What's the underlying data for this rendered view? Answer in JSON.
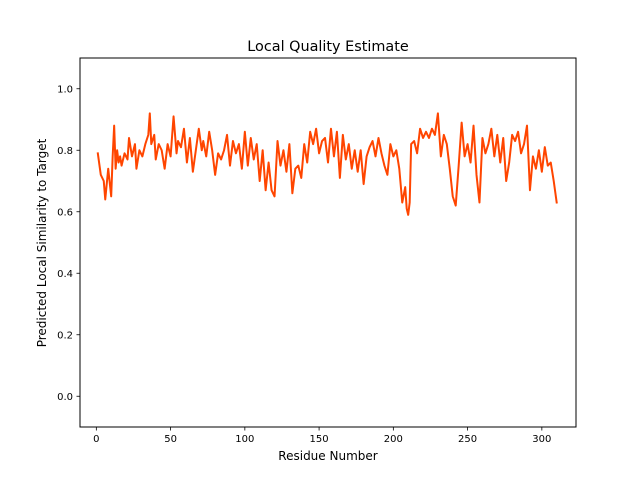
{
  "chart_data": {
    "type": "line",
    "title": "Local Quality Estimate",
    "xlabel": "Residue Number",
    "ylabel": "Predicted Local Similarity to Target",
    "xlim": [
      -11,
      323
    ],
    "ylim": [
      -0.1,
      1.1
    ],
    "xticks": [
      0,
      50,
      100,
      150,
      200,
      250,
      300
    ],
    "yticks": [
      0.0,
      0.2,
      0.4,
      0.6,
      0.8,
      1.0
    ],
    "ytick_labels": [
      "0.0",
      "0.2",
      "0.4",
      "0.6",
      "0.8",
      "1.0"
    ],
    "grid": false,
    "series": [
      {
        "color": "#ff4500",
        "x": [
          1,
          3,
          5,
          6,
          8,
          10,
          11,
          12,
          13,
          14,
          15,
          16,
          17,
          19,
          21,
          22,
          24,
          26,
          27,
          29,
          31,
          33,
          35,
          36,
          37,
          39,
          40,
          42,
          44,
          46,
          48,
          50,
          52,
          54,
          55,
          57,
          59,
          61,
          63,
          65,
          67,
          69,
          71,
          72,
          74,
          76,
          78,
          80,
          82,
          84,
          86,
          88,
          90,
          92,
          94,
          96,
          98,
          100,
          102,
          104,
          106,
          108,
          110,
          112,
          114,
          116,
          118,
          120,
          122,
          124,
          126,
          128,
          130,
          132,
          134,
          136,
          138,
          140,
          142,
          144,
          146,
          148,
          150,
          152,
          154,
          156,
          158,
          160,
          162,
          164,
          166,
          168,
          170,
          172,
          174,
          176,
          178,
          180,
          182,
          184,
          186,
          188,
          190,
          192,
          194,
          196,
          198,
          200,
          202,
          204,
          206,
          208,
          209,
          210,
          211,
          212,
          214,
          216,
          218,
          220,
          222,
          224,
          226,
          228,
          230,
          232,
          234,
          236,
          238,
          240,
          242,
          244,
          246,
          248,
          250,
          252,
          254,
          256,
          258,
          260,
          262,
          264,
          266,
          268,
          270,
          272,
          274,
          276,
          278,
          280,
          282,
          284,
          286,
          288,
          290,
          292,
          294,
          296,
          298,
          300,
          302,
          304,
          306,
          308,
          310
        ],
        "y": [
          0.79,
          0.72,
          0.7,
          0.64,
          0.74,
          0.65,
          0.78,
          0.88,
          0.74,
          0.8,
          0.76,
          0.78,
          0.75,
          0.79,
          0.77,
          0.84,
          0.78,
          0.82,
          0.74,
          0.8,
          0.78,
          0.82,
          0.85,
          0.92,
          0.82,
          0.85,
          0.77,
          0.82,
          0.8,
          0.74,
          0.82,
          0.78,
          0.91,
          0.79,
          0.83,
          0.81,
          0.87,
          0.76,
          0.84,
          0.73,
          0.8,
          0.87,
          0.8,
          0.83,
          0.78,
          0.86,
          0.8,
          0.72,
          0.79,
          0.77,
          0.8,
          0.85,
          0.75,
          0.83,
          0.79,
          0.82,
          0.74,
          0.86,
          0.75,
          0.84,
          0.77,
          0.82,
          0.7,
          0.8,
          0.67,
          0.76,
          0.67,
          0.65,
          0.83,
          0.75,
          0.8,
          0.73,
          0.82,
          0.66,
          0.74,
          0.75,
          0.71,
          0.82,
          0.76,
          0.86,
          0.82,
          0.87,
          0.79,
          0.83,
          0.84,
          0.76,
          0.87,
          0.78,
          0.86,
          0.71,
          0.85,
          0.77,
          0.82,
          0.74,
          0.8,
          0.73,
          0.8,
          0.69,
          0.78,
          0.81,
          0.83,
          0.78,
          0.84,
          0.79,
          0.75,
          0.72,
          0.82,
          0.78,
          0.8,
          0.74,
          0.63,
          0.68,
          0.61,
          0.59,
          0.63,
          0.82,
          0.83,
          0.79,
          0.87,
          0.84,
          0.86,
          0.84,
          0.87,
          0.85,
          0.92,
          0.78,
          0.85,
          0.82,
          0.74,
          0.65,
          0.62,
          0.75,
          0.89,
          0.78,
          0.82,
          0.76,
          0.88,
          0.72,
          0.63,
          0.84,
          0.79,
          0.82,
          0.87,
          0.78,
          0.85,
          0.76,
          0.84,
          0.7,
          0.76,
          0.85,
          0.83,
          0.86,
          0.79,
          0.82,
          0.88,
          0.67,
          0.78,
          0.74,
          0.8,
          0.73,
          0.81,
          0.75,
          0.76,
          0.7,
          0.63
        ]
      }
    ]
  }
}
